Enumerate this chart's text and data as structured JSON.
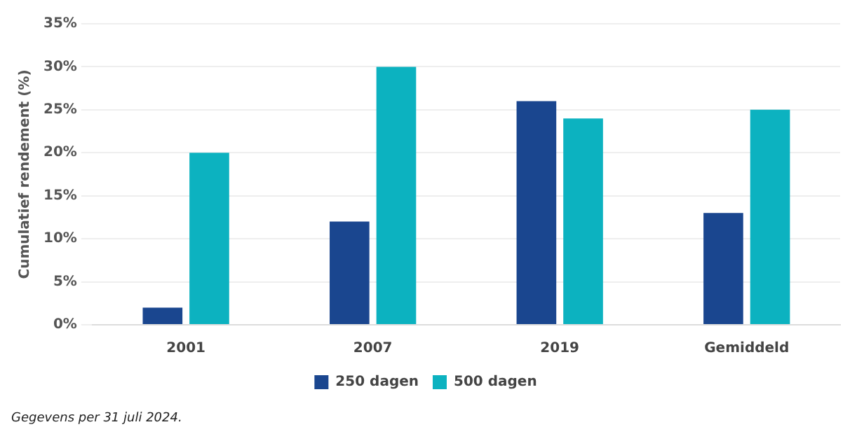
{
  "chart_data": {
    "type": "bar",
    "ylabel": "Cumulatief rendement (%)",
    "categories": [
      "2001",
      "2007",
      "2019",
      "Gemiddeld"
    ],
    "series": [
      {
        "name": "250 dagen",
        "color": "#1a468f",
        "values": [
          2,
          12,
          26,
          13
        ]
      },
      {
        "name": "500 dagen",
        "color": "#0cb2c0",
        "values": [
          20,
          30,
          24,
          25
        ]
      }
    ],
    "ylim": [
      0,
      35
    ],
    "yticks": [
      {
        "value": 0,
        "label": "0%"
      },
      {
        "value": 5,
        "label": "5%"
      },
      {
        "value": 10,
        "label": "10%"
      },
      {
        "value": 15,
        "label": "15%"
      },
      {
        "value": 20,
        "label": "20%"
      },
      {
        "value": 25,
        "label": "25%"
      },
      {
        "value": 30,
        "label": "30%"
      },
      {
        "value": 35,
        "label": "35%"
      }
    ],
    "grid": "y",
    "legend": "bottom",
    "annotations": [
      "Gegevens per 31 juli 2024."
    ]
  }
}
